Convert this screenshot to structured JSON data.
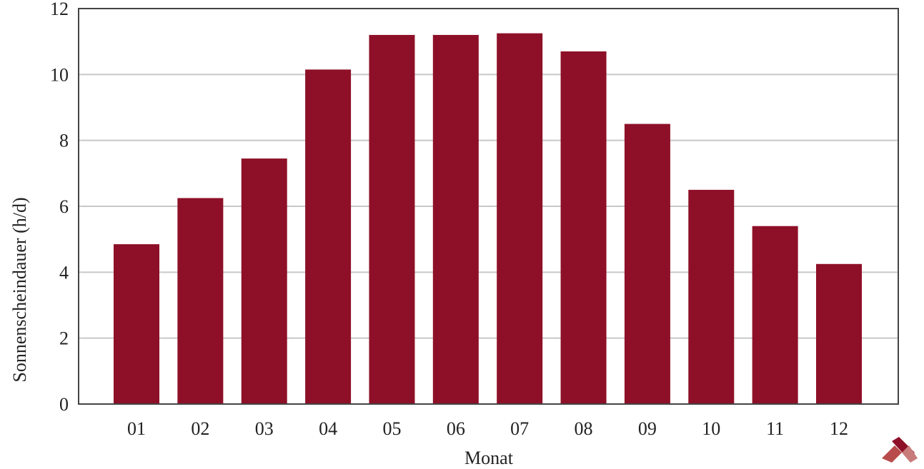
{
  "chart_data": {
    "type": "bar",
    "categories": [
      "01",
      "02",
      "03",
      "04",
      "05",
      "06",
      "07",
      "08",
      "09",
      "10",
      "11",
      "12"
    ],
    "values": [
      4.85,
      6.25,
      7.45,
      10.15,
      11.2,
      11.2,
      11.25,
      10.7,
      8.5,
      6.5,
      5.4,
      4.25
    ],
    "xlabel": "Monat",
    "ylabel": "Sonnenscheindauer (h/d)",
    "ylim": [
      0,
      12
    ],
    "yticks": [
      0,
      2,
      4,
      6,
      8,
      10,
      12
    ],
    "grid": true,
    "legend": "none",
    "colors": {
      "bar": "#8e1028",
      "grid": "#c8c8c8",
      "axis": "#444444"
    }
  },
  "logo": {
    "name": "wetterkontor-logo-icon"
  }
}
